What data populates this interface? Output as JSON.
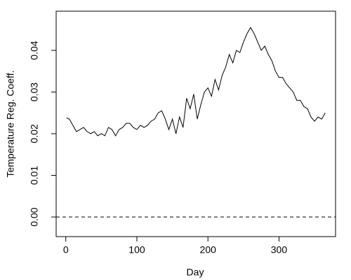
{
  "chart_data": {
    "type": "line",
    "xlabel": "Day",
    "ylabel": "Temperature Reg. Coeff.",
    "x": [
      1,
      5,
      10,
      15,
      20,
      25,
      30,
      35,
      40,
      45,
      50,
      55,
      60,
      65,
      70,
      75,
      80,
      85,
      90,
      95,
      100,
      105,
      110,
      115,
      120,
      125,
      130,
      135,
      140,
      145,
      150,
      155,
      160,
      165,
      170,
      175,
      180,
      185,
      190,
      195,
      200,
      205,
      210,
      215,
      220,
      225,
      230,
      235,
      240,
      245,
      250,
      255,
      260,
      265,
      270,
      275,
      280,
      285,
      290,
      295,
      300,
      305,
      310,
      315,
      320,
      325,
      330,
      335,
      340,
      345,
      350,
      355,
      360,
      365
    ],
    "values": [
      0.0238,
      0.0235,
      0.022,
      0.0205,
      0.021,
      0.0215,
      0.0205,
      0.02,
      0.0205,
      0.0195,
      0.02,
      0.0195,
      0.0215,
      0.021,
      0.0195,
      0.021,
      0.0215,
      0.0225,
      0.0225,
      0.0215,
      0.021,
      0.022,
      0.0215,
      0.022,
      0.023,
      0.0235,
      0.025,
      0.0255,
      0.0235,
      0.021,
      0.0235,
      0.02,
      0.024,
      0.0215,
      0.0285,
      0.026,
      0.0295,
      0.0235,
      0.027,
      0.03,
      0.031,
      0.029,
      0.033,
      0.0305,
      0.034,
      0.036,
      0.039,
      0.037,
      0.04,
      0.0395,
      0.042,
      0.044,
      0.0455,
      0.044,
      0.042,
      0.04,
      0.041,
      0.039,
      0.0375,
      0.035,
      0.0335,
      0.0335,
      0.032,
      0.031,
      0.03,
      0.028,
      0.028,
      0.0265,
      0.026,
      0.024,
      0.023,
      0.024,
      0.0235,
      0.025
    ],
    "color": "#000000",
    "xlim": [
      -13.56,
      379.56
    ],
    "ylim": [
      -0.0047,
      0.0494
    ],
    "xticks": [
      0,
      100,
      200,
      300
    ],
    "yticks": [
      {
        "value": 0,
        "label": "0.00"
      },
      0.01,
      0.02,
      0.03,
      0.04
    ],
    "reference_line": {
      "y": 0,
      "style": "dashed"
    }
  }
}
